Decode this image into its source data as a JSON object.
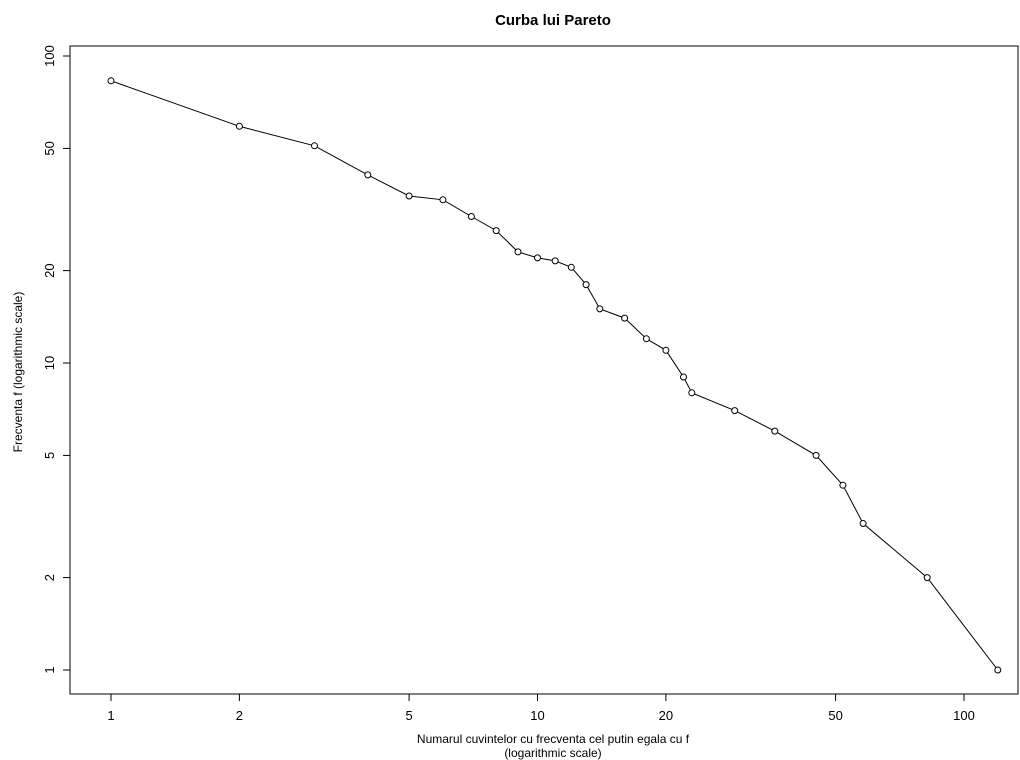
{
  "chart_data": {
    "type": "line",
    "title": "Curba lui Pareto",
    "xlabel_line1": "Numarul cuvintelor cu frecventa cel putin egala cu f",
    "xlabel_line2": "(logarithmic scale)",
    "ylabel": "Frecventa f (logarithmic scale)",
    "x_scale": "log",
    "y_scale": "log",
    "xlim": [
      1,
      125
    ],
    "ylim": [
      1,
      100
    ],
    "x_ticks": [
      1,
      2,
      5,
      10,
      20,
      50,
      100
    ],
    "x_tick_labels": [
      "1",
      "2",
      "5",
      "10",
      "20",
      "50",
      "100"
    ],
    "y_ticks": [
      1,
      2,
      5,
      10,
      20,
      50,
      100
    ],
    "y_tick_labels": [
      "1",
      "2",
      "5",
      "10",
      "20",
      "50",
      "100"
    ],
    "grid": false,
    "legend": "none",
    "marker": "open-circle",
    "points": [
      {
        "x": 1,
        "y": 83
      },
      {
        "x": 2,
        "y": 59
      },
      {
        "x": 3,
        "y": 51
      },
      {
        "x": 4,
        "y": 41
      },
      {
        "x": 5,
        "y": 35
      },
      {
        "x": 6,
        "y": 34
      },
      {
        "x": 7,
        "y": 30
      },
      {
        "x": 8,
        "y": 27
      },
      {
        "x": 9,
        "y": 23
      },
      {
        "x": 10,
        "y": 22
      },
      {
        "x": 11,
        "y": 21.5
      },
      {
        "x": 12,
        "y": 20.5
      },
      {
        "x": 13,
        "y": 18
      },
      {
        "x": 14,
        "y": 15
      },
      {
        "x": 16,
        "y": 14
      },
      {
        "x": 18,
        "y": 12
      },
      {
        "x": 20,
        "y": 11
      },
      {
        "x": 22,
        "y": 9
      },
      {
        "x": 23,
        "y": 8
      },
      {
        "x": 29,
        "y": 7
      },
      {
        "x": 36,
        "y": 6
      },
      {
        "x": 45,
        "y": 5
      },
      {
        "x": 52,
        "y": 4
      },
      {
        "x": 58,
        "y": 3
      },
      {
        "x": 82,
        "y": 2
      },
      {
        "x": 120,
        "y": 1
      }
    ]
  }
}
